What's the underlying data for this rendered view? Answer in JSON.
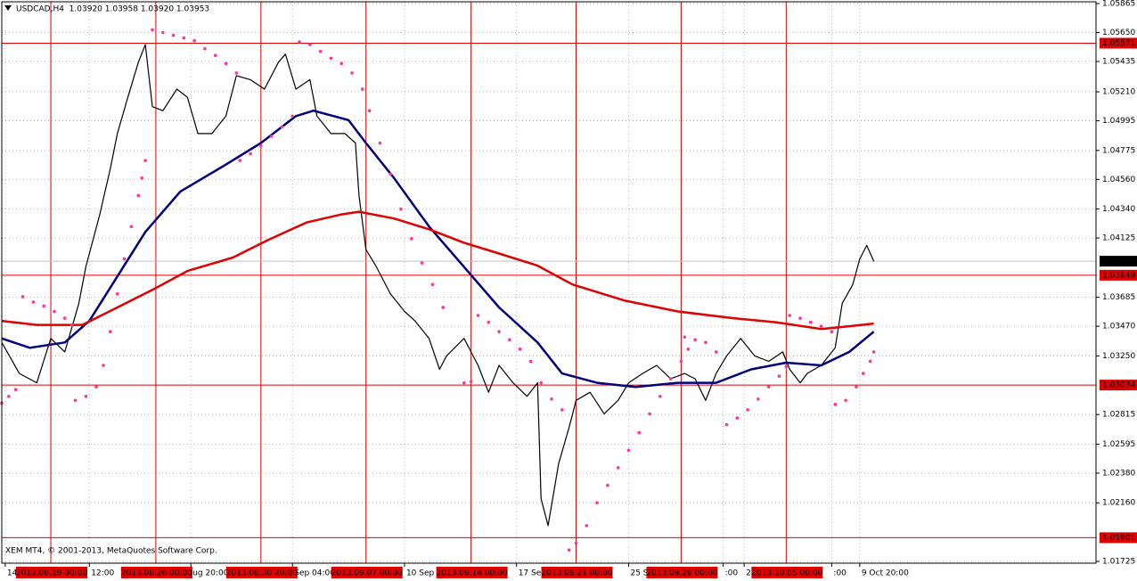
{
  "chart_data": {
    "type": "line",
    "title": "USDCAD,H4  1.03920 1.03958 1.03920 1.03953",
    "footer": "XEM MT4, © 2001-2013, MetaQuotes Software Corp.",
    "xlim": [
      0,
      313
    ],
    "ylim": [
      1.01725,
      1.05865
    ],
    "grid": true,
    "yticks": [
      {
        "value": 1.05865,
        "label": "1.05865"
      },
      {
        "value": 1.0565,
        "label": "1.05650"
      },
      {
        "value": 1.05435,
        "label": "1.05435"
      },
      {
        "value": 1.0521,
        "label": "1.05210"
      },
      {
        "value": 1.04995,
        "label": "1.04995"
      },
      {
        "value": 1.04775,
        "label": "1.04775"
      },
      {
        "value": 1.0456,
        "label": "1.04560"
      },
      {
        "value": 1.0434,
        "label": "1.04340"
      },
      {
        "value": 1.04125,
        "label": "1.04125"
      },
      {
        "value": 1.03685,
        "label": "1.03685"
      },
      {
        "value": 1.0347,
        "label": "1.03470"
      },
      {
        "value": 1.0325,
        "label": "1.03250"
      },
      {
        "value": 1.02815,
        "label": "1.02815"
      },
      {
        "value": 1.02595,
        "label": "1.02595"
      },
      {
        "value": 1.0238,
        "label": "1.02380"
      },
      {
        "value": 1.0216,
        "label": "1.02160"
      },
      {
        "value": 1.01725,
        "label": "1.01725"
      }
    ],
    "xticks": [
      {
        "value": 1,
        "label": "14"
      },
      {
        "value": 25,
        "label": "12:00"
      },
      {
        "value": 54,
        "label": "ug 20:00"
      },
      {
        "value": 83,
        "label": "Sep 04:00"
      },
      {
        "value": 115,
        "label": "10 Sep 12"
      },
      {
        "value": 147,
        "label": "17 Sep"
      },
      {
        "value": 179,
        "label": "25 Se"
      },
      {
        "value": 206,
        "label": ":00"
      },
      {
        "value": 212,
        "label": "2 O"
      },
      {
        "value": 237,
        "label": ":00"
      },
      {
        "value": 245,
        "label": "9 Oct 20:00"
      }
    ],
    "vlines": [
      {
        "value": 14,
        "label": "2013.08.19 00:00"
      },
      {
        "value": 44,
        "label": "2013.08.26 00:00"
      },
      {
        "value": 74,
        "label": "2013.08.30 20:00"
      },
      {
        "value": 104,
        "label": "2013.09.07 00:00"
      },
      {
        "value": 134,
        "label": "2013.09.14 00:00"
      },
      {
        "value": 164,
        "label": "2013.09.21 00:00"
      },
      {
        "value": 194,
        "label": "2013.09.28 00:00"
      },
      {
        "value": 224,
        "label": "2013.10.05 00:00"
      }
    ],
    "hlines": [
      1.05571,
      1.03849,
      1.03034,
      1.01901
    ],
    "level_color": "#e00000",
    "last_price": 1.03953,
    "series": [
      {
        "style": "line",
        "color": "#000000",
        "width": 1.2,
        "x": [
          0,
          5,
          10,
          14,
          18,
          22,
          24,
          28,
          31,
          33,
          36,
          39,
          41,
          43,
          46,
          50,
          53,
          56,
          60,
          64,
          67,
          71,
          75,
          79,
          81,
          84,
          88,
          90,
          94,
          98,
          101,
          102,
          104,
          107,
          111,
          115,
          118,
          122,
          125,
          127,
          132,
          136,
          139,
          142,
          146,
          150,
          153,
          154,
          156,
          159,
          162,
          164,
          168,
          172,
          176,
          179,
          183,
          187,
          191,
          195,
          198,
          201,
          204,
          207,
          211,
          215,
          219,
          223,
          225,
          228,
          230,
          234,
          238,
          240,
          243,
          245,
          247,
          249
        ],
        "values": [
          1.0335,
          1.0312,
          1.0305,
          1.0338,
          1.0328,
          1.0364,
          1.0391,
          1.043,
          1.0464,
          1.049,
          1.0517,
          1.0543,
          1.0556,
          1.051,
          1.0507,
          1.0523,
          1.0517,
          1.049,
          1.049,
          1.0503,
          1.0533,
          1.053,
          1.0523,
          1.0543,
          1.0549,
          1.0523,
          1.053,
          1.0503,
          1.049,
          1.049,
          1.0483,
          1.0444,
          1.0404,
          1.0391,
          1.0371,
          1.0358,
          1.0351,
          1.0338,
          1.0315,
          1.0325,
          1.0338,
          1.0318,
          1.0298,
          1.0318,
          1.0305,
          1.0295,
          1.0305,
          1.0219,
          1.0199,
          1.0245,
          1.0272,
          1.0292,
          1.0298,
          1.0282,
          1.0292,
          1.0305,
          1.0312,
          1.0318,
          1.0308,
          1.0312,
          1.0308,
          1.0292,
          1.0312,
          1.0325,
          1.0338,
          1.0325,
          1.0321,
          1.0328,
          1.0315,
          1.0305,
          1.0312,
          1.0318,
          1.0331,
          1.0364,
          1.0378,
          1.0397,
          1.0407,
          1.03953
        ]
      },
      {
        "style": "line",
        "color": "#000080",
        "width": 2.5,
        "x": [
          0,
          8,
          18,
          25,
          33,
          41,
          51,
          64,
          74,
          84,
          89,
          99,
          104,
          112,
          122,
          132,
          142,
          153,
          160,
          170,
          181,
          193,
          204,
          214,
          224,
          234,
          242,
          249
        ],
        "values": [
          1.0338,
          1.0331,
          1.0335,
          1.0351,
          1.0384,
          1.0417,
          1.0447,
          1.0467,
          1.0483,
          1.0503,
          1.0507,
          1.05,
          1.0483,
          1.0457,
          1.0421,
          1.0391,
          1.0361,
          1.0335,
          1.0312,
          1.0305,
          1.0302,
          1.0305,
          1.0305,
          1.0315,
          1.032,
          1.0318,
          1.0328,
          1.0343
        ]
      },
      {
        "style": "line",
        "color": "#e00000",
        "width": 2.5,
        "x": [
          0,
          10,
          23,
          33,
          43,
          53,
          66,
          76,
          87,
          97,
          102,
          112,
          122,
          132,
          142,
          153,
          163,
          178,
          193,
          209,
          221,
          234,
          242,
          249
        ],
        "values": [
          1.0351,
          1.0348,
          1.0348,
          1.0361,
          1.0374,
          1.0388,
          1.0398,
          1.0411,
          1.0424,
          1.043,
          1.0432,
          1.0427,
          1.0419,
          1.0409,
          1.0401,
          1.0392,
          1.0378,
          1.0366,
          1.0358,
          1.0353,
          1.035,
          1.0345,
          1.0347,
          1.0349
        ]
      },
      {
        "style": "dots",
        "color": "#ff3399",
        "x": [
          0,
          2,
          4,
          6,
          9,
          12,
          15,
          18,
          20,
          21,
          24,
          27,
          29,
          31,
          33,
          35,
          37,
          39,
          40,
          41,
          43,
          46,
          49,
          52,
          55,
          58,
          61,
          64,
          67,
          68,
          71,
          74,
          77,
          80,
          83,
          85,
          88,
          91,
          94,
          97,
          100,
          103,
          105,
          108,
          111,
          114,
          117,
          120,
          123,
          126,
          132,
          134,
          136,
          139,
          142,
          145,
          148,
          151,
          154,
          157,
          160,
          162,
          164,
          167,
          170,
          173,
          176,
          179,
          182,
          185,
          188,
          191,
          194,
          196,
          195,
          198,
          201,
          204,
          207,
          210,
          213,
          216,
          219,
          222,
          224,
          225,
          228,
          231,
          234,
          237,
          238,
          241,
          244,
          246,
          248,
          249
        ],
        "values": [
          1.029,
          1.0295,
          1.03,
          1.0369,
          1.0365,
          1.0362,
          1.0358,
          1.0353,
          1.0348,
          1.0292,
          1.0295,
          1.0302,
          1.0318,
          1.0343,
          1.0371,
          1.0397,
          1.0421,
          1.0444,
          1.0457,
          1.047,
          1.0567,
          1.0565,
          1.0563,
          1.0561,
          1.0559,
          1.0553,
          1.0548,
          1.0542,
          1.0535,
          1.047,
          1.0475,
          1.0481,
          1.0488,
          1.0495,
          1.0503,
          1.0558,
          1.0556,
          1.0551,
          1.0546,
          1.0542,
          1.0535,
          1.0523,
          1.0507,
          1.0483,
          1.046,
          1.0434,
          1.0412,
          1.0394,
          1.0378,
          1.0361,
          1.0305,
          1.0306,
          1.0355,
          1.035,
          1.0343,
          1.0337,
          1.033,
          1.0321,
          1.0305,
          1.0293,
          1.0285,
          1.0181,
          1.0186,
          1.0199,
          1.0216,
          1.0229,
          1.0242,
          1.0255,
          1.0268,
          1.0282,
          1.0295,
          1.0308,
          1.0321,
          1.033,
          1.0339,
          1.0337,
          1.0335,
          1.0328,
          1.0274,
          1.0279,
          1.0285,
          1.0293,
          1.0302,
          1.031,
          1.0317,
          1.0355,
          1.0353,
          1.035,
          1.0347,
          1.0343,
          1.0289,
          1.0292,
          1.0302,
          1.0312,
          1.0321,
          1.0328
        ]
      }
    ]
  }
}
